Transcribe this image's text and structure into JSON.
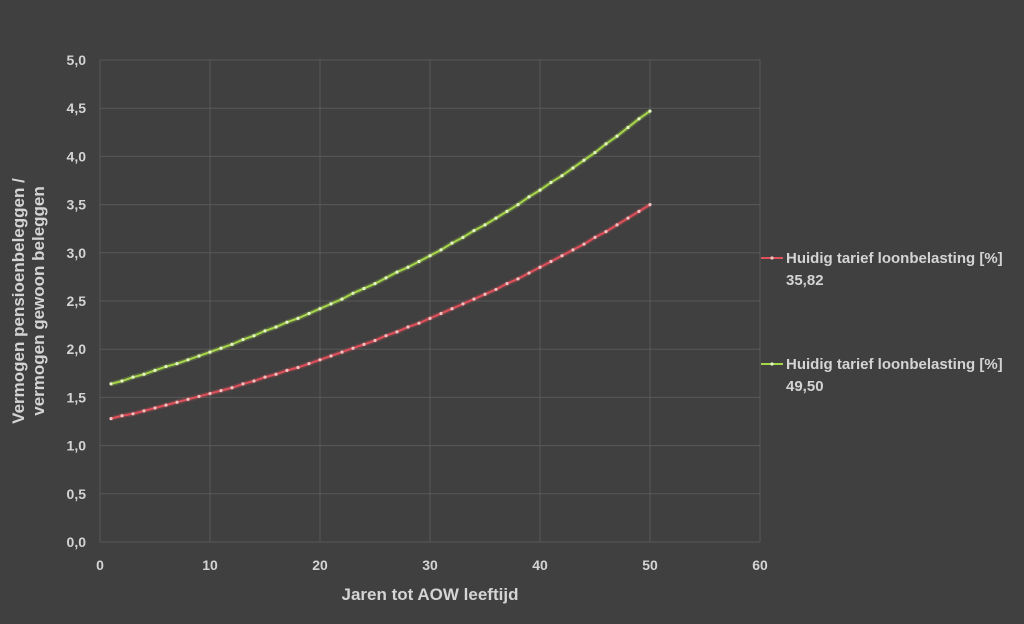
{
  "chart_data": {
    "type": "line",
    "title": "",
    "xlabel": "Jaren tot AOW leeftijd",
    "ylabel_lines": [
      "Vermogen pensioenbeleggen /",
      "vermogen gewoon beleggen"
    ],
    "xlim": [
      0,
      60
    ],
    "ylim": [
      0,
      5
    ],
    "xticks": [
      "0",
      "10",
      "20",
      "30",
      "40",
      "50",
      "60"
    ],
    "yticks": [
      "0,0",
      "0,5",
      "1,0",
      "1,5",
      "2,0",
      "2,5",
      "3,0",
      "3,5",
      "4,0",
      "4,5",
      "5,0"
    ],
    "grid": true,
    "legend_placement": "right",
    "x": [
      1,
      2,
      3,
      4,
      5,
      6,
      7,
      8,
      9,
      10,
      11,
      12,
      13,
      14,
      15,
      16,
      17,
      18,
      19,
      20,
      21,
      22,
      23,
      24,
      25,
      26,
      27,
      28,
      29,
      30,
      31,
      32,
      33,
      34,
      35,
      36,
      37,
      38,
      39,
      40,
      41,
      42,
      43,
      44,
      45,
      46,
      47,
      48,
      49,
      50
    ],
    "series": [
      {
        "name_line1": "Huidig tarief loonbelasting [%]",
        "name_line2": "35,82",
        "color": "#e0505a",
        "values": [
          1.28,
          1.31,
          1.33,
          1.36,
          1.39,
          1.42,
          1.45,
          1.48,
          1.51,
          1.54,
          1.57,
          1.6,
          1.64,
          1.67,
          1.71,
          1.74,
          1.78,
          1.81,
          1.85,
          1.89,
          1.93,
          1.97,
          2.01,
          2.05,
          2.09,
          2.14,
          2.18,
          2.23,
          2.27,
          2.32,
          2.37,
          2.42,
          2.47,
          2.52,
          2.57,
          2.62,
          2.68,
          2.73,
          2.79,
          2.85,
          2.91,
          2.97,
          3.03,
          3.09,
          3.16,
          3.22,
          3.29,
          3.36,
          3.43,
          3.5
        ]
      },
      {
        "name_line1": "Huidig tarief loonbelasting [%]",
        "name_line2": "49,50",
        "color": "#a6d64a",
        "values": [
          1.64,
          1.67,
          1.71,
          1.74,
          1.78,
          1.82,
          1.85,
          1.89,
          1.93,
          1.97,
          2.01,
          2.05,
          2.1,
          2.14,
          2.19,
          2.23,
          2.28,
          2.32,
          2.37,
          2.42,
          2.47,
          2.52,
          2.58,
          2.63,
          2.68,
          2.74,
          2.8,
          2.85,
          2.91,
          2.97,
          3.03,
          3.1,
          3.16,
          3.23,
          3.29,
          3.36,
          3.43,
          3.5,
          3.58,
          3.65,
          3.73,
          3.8,
          3.88,
          3.96,
          4.04,
          4.13,
          4.21,
          4.3,
          4.39,
          4.47
        ]
      }
    ]
  }
}
